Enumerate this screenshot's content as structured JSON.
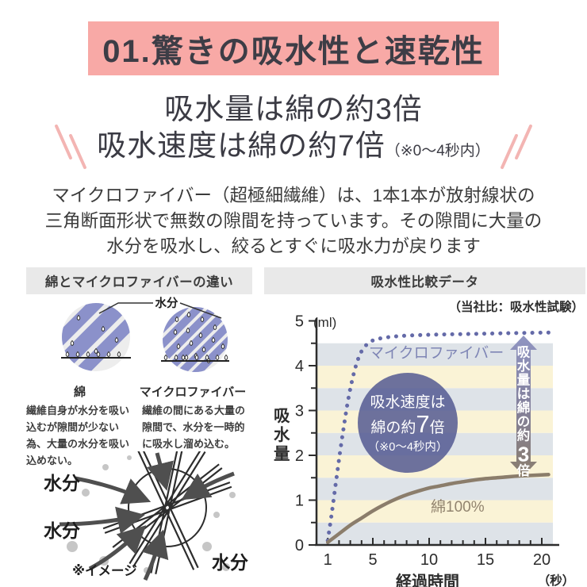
{
  "banner": {
    "title": "01.驚きの吸水性と速乾性"
  },
  "headline": {
    "line1": "吸水量は綿の約3倍",
    "line2": "吸水速度は綿の約7倍",
    "line2_note": "（※0〜4秒内）"
  },
  "intro": {
    "lines": [
      "マイクロファイバー（超極細繊維）は、1本1本が放射線状の",
      "三角断面形状で無数の隙間を持っています。その隙間に大量の",
      "水分を吸水し、絞るとすぐに吸水力が戻ります"
    ]
  },
  "left_panel": {
    "header": "綿とマイクロファイバーの違い",
    "moisture_label": "水分",
    "cotton": {
      "name": "綿",
      "desc": "繊維自身が水分を吸い込むが隙間が少ない為、大量の水分を吸い込めない。"
    },
    "microfiber": {
      "name": "マイクロファイバー",
      "desc": "繊維の間にある大量の隙間で、水分を一時的に吸水し溜め込む。"
    },
    "cross_section": {
      "moisture1": "水分",
      "moisture2": "水分",
      "moisture3": "水分",
      "caption": "※イメージ"
    }
  },
  "right_panel": {
    "header": "吸水性比較データ",
    "note": "（当社比：吸水性試験）"
  },
  "colors": {
    "banner_bg": "#f8a9a6",
    "accent_pink": "#f3b5b3",
    "header_bg": "#e9e9e9",
    "fiber_purple": "#8b91ca",
    "annotation_circle": "rgba(84,89,146,0.85)"
  },
  "chart_data": {
    "type": "line",
    "title": "吸水性比較データ",
    "subtitle": "（当社比：吸水性試験）",
    "xlabel": "経過時間",
    "x_unit": "（秒）",
    "ylabel": "吸水量",
    "y_unit": "(ml)",
    "xlim": [
      0,
      21
    ],
    "ylim": [
      0,
      5
    ],
    "x_ticks": [
      1,
      5,
      10,
      15,
      20
    ],
    "y_ticks": [
      0,
      1,
      2,
      3,
      4,
      5
    ],
    "grid": "striped-bands",
    "stripes": {
      "colors": [
        "#dee3e8",
        "#faf3d6"
      ],
      "band": 0.5,
      "top": 4.5
    },
    "series": [
      {
        "name": "マイクロファイバー",
        "style": "dotted",
        "color": "#646aa8",
        "label_color": "#7e85b5",
        "points": [
          [
            1,
            0.1
          ],
          [
            1.35,
            0.7
          ],
          [
            1.7,
            1.35
          ],
          [
            2.05,
            2.0
          ],
          [
            2.4,
            2.6
          ],
          [
            2.75,
            3.15
          ],
          [
            3.1,
            3.6
          ],
          [
            3.5,
            4.0
          ],
          [
            3.95,
            4.3
          ],
          [
            4.5,
            4.48
          ],
          [
            5.2,
            4.58
          ],
          [
            6.5,
            4.64
          ],
          [
            8,
            4.67
          ],
          [
            10,
            4.69
          ],
          [
            12,
            4.7
          ],
          [
            14,
            4.71
          ],
          [
            16,
            4.72
          ],
          [
            18,
            4.73
          ],
          [
            20.6,
            4.74
          ]
        ]
      },
      {
        "name": "綿100%",
        "style": "solid",
        "color": "#8b7d6b",
        "label_color": "#92846f",
        "points": [
          [
            1,
            0.06
          ],
          [
            2,
            0.25
          ],
          [
            3,
            0.44
          ],
          [
            4,
            0.6
          ],
          [
            5,
            0.76
          ],
          [
            6,
            0.9
          ],
          [
            7,
            1.02
          ],
          [
            8,
            1.12
          ],
          [
            9,
            1.2
          ],
          [
            10,
            1.27
          ],
          [
            11,
            1.32
          ],
          [
            12,
            1.37
          ],
          [
            13,
            1.41
          ],
          [
            14,
            1.45
          ],
          [
            15,
            1.48
          ],
          [
            16,
            1.5
          ],
          [
            17,
            1.52
          ],
          [
            18,
            1.54
          ],
          [
            19,
            1.55
          ],
          [
            20.6,
            1.57
          ]
        ]
      }
    ],
    "annotations": {
      "circle_note": {
        "lines": [
          "吸水速度は",
          "綿の約7倍",
          "（※0〜4秒内）"
        ],
        "big_char": "7"
      },
      "arrow_note": {
        "text": "吸水量は綿の約3倍",
        "big_char": "3"
      }
    }
  }
}
